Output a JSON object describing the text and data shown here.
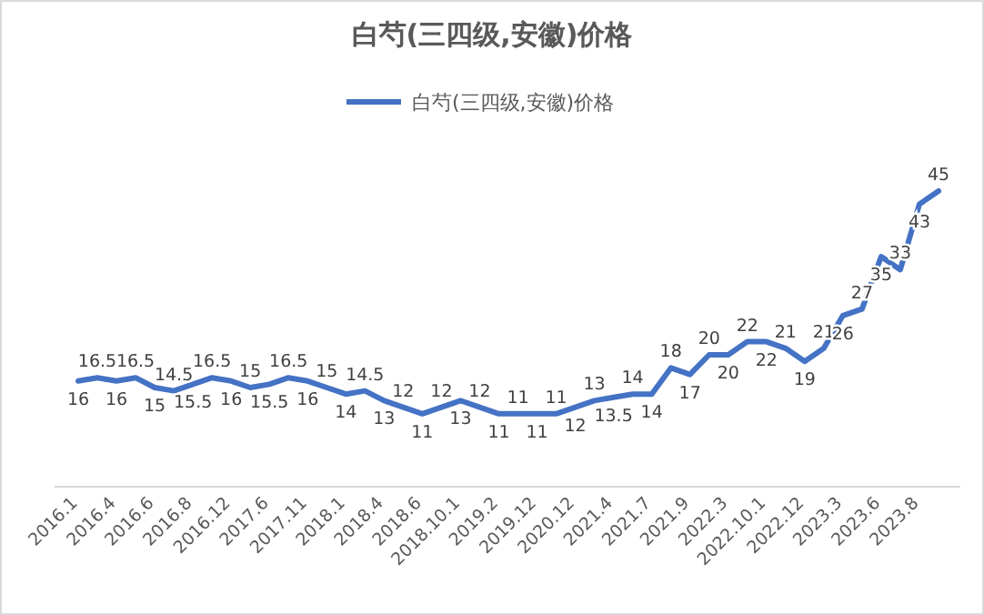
{
  "chart_data": {
    "type": "line",
    "title": "白芍(三四级,安徽)价格",
    "categories": [
      "2016.1",
      null,
      "2016.4",
      null,
      "2016.6",
      null,
      "2016.8",
      null,
      "2016.12",
      null,
      "2017.6",
      null,
      "2017.11",
      null,
      "2018.1",
      null,
      "2018.4",
      null,
      "2018.6",
      null,
      "2018.10.1",
      null,
      "2019.2",
      null,
      "2019.12",
      null,
      "2020.12",
      null,
      "2021.4",
      null,
      "2021.7",
      null,
      "2021.9",
      null,
      "2022.3",
      null,
      "2022.10.1",
      null,
      "2022.12",
      null,
      "2023.3",
      null,
      "2023.6",
      null,
      "2023.8",
      null
    ],
    "series": [
      {
        "name": "白芍(三四级,安徽)价格",
        "color": "#4472c4",
        "values": [
          16,
          16.5,
          16,
          16.5,
          15,
          14.5,
          15.5,
          16.5,
          16,
          15,
          15.5,
          16.5,
          16,
          15,
          14,
          14.5,
          13,
          12,
          11,
          12,
          13,
          12,
          11,
          11,
          11,
          11,
          12,
          13,
          13.5,
          14,
          14,
          18,
          17,
          20,
          20,
          22,
          22,
          21,
          19,
          21,
          26,
          27,
          35,
          33,
          43,
          45
        ]
      }
    ],
    "data_labels": true,
    "legend": "top",
    "marker": "none",
    "line_style": "solid"
  }
}
